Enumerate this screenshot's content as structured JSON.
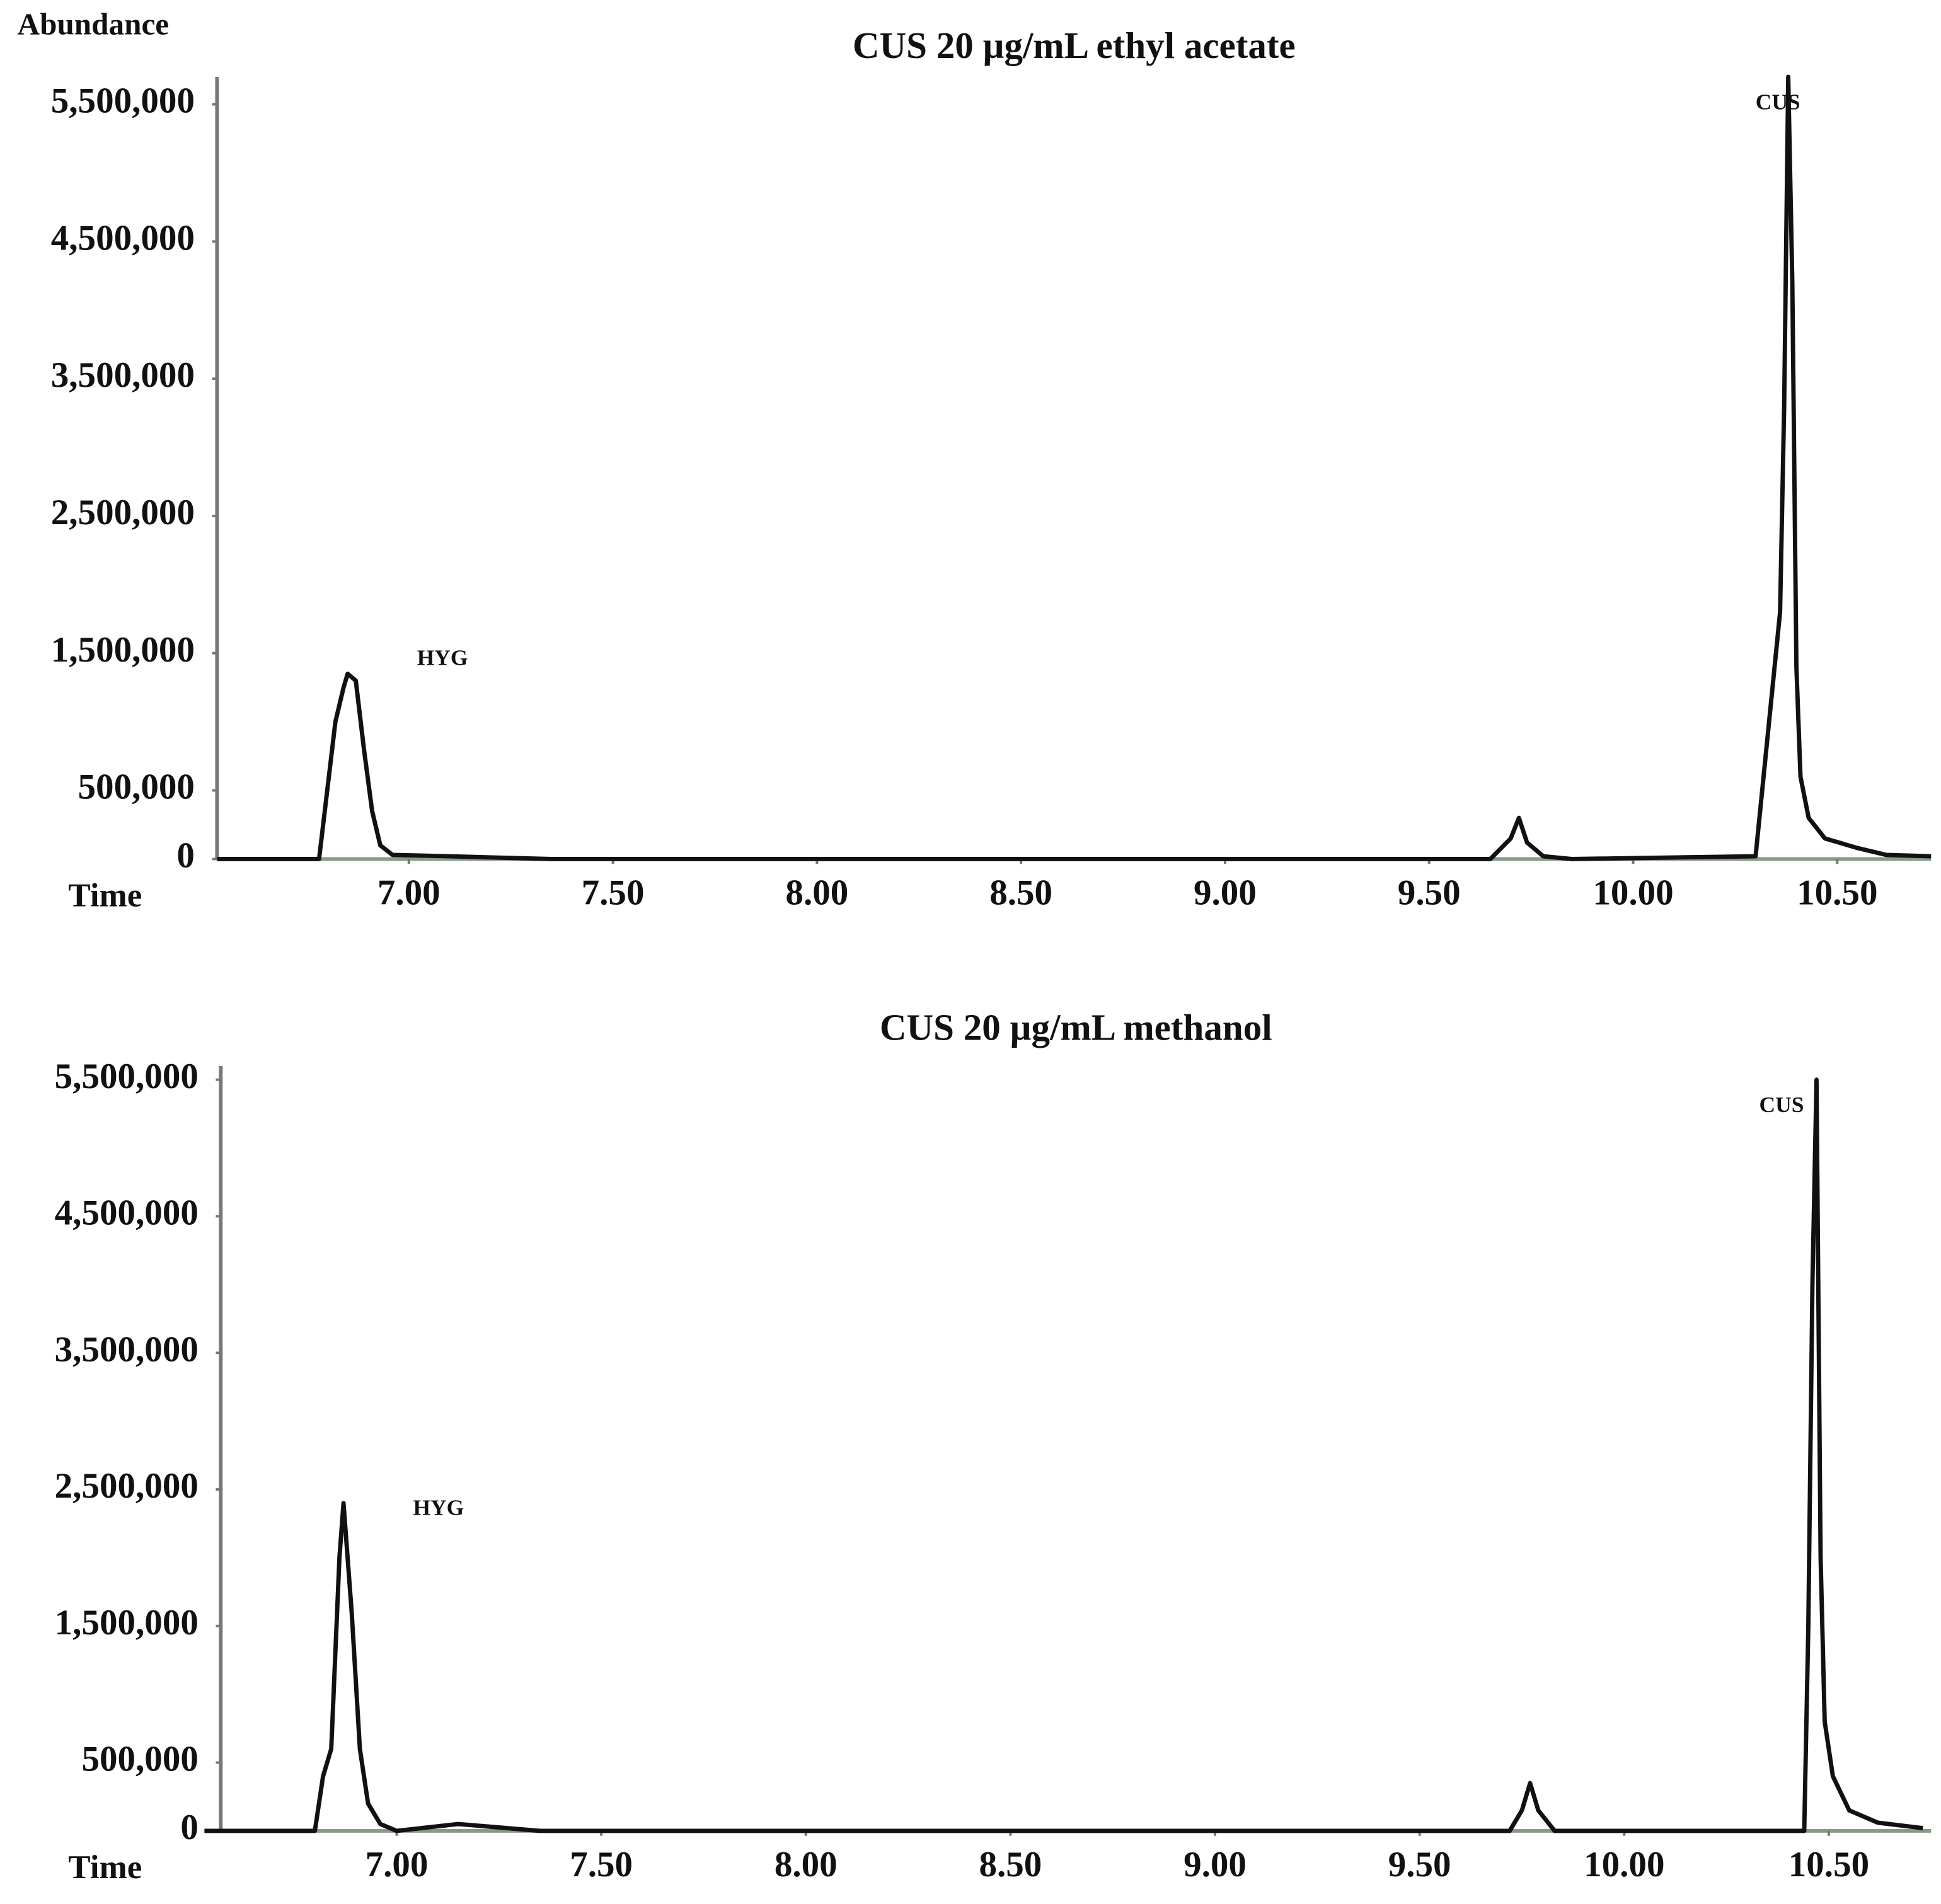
{
  "chart_data": [
    {
      "type": "line",
      "title": "CUS 20 µg/mL ethyl acetate",
      "y_label": "Abundance",
      "x_label": "Time",
      "xlim": [
        6.53,
        10.73
      ],
      "ylim": [
        0,
        5700000
      ],
      "xticks": [
        {
          "value": 7,
          "label": "7.00"
        },
        {
          "value": 7.5,
          "label": "7.50"
        },
        {
          "value": 8,
          "label": "8.00"
        },
        {
          "value": 8.5,
          "label": "8.50"
        },
        {
          "value": 9,
          "label": "9.00"
        },
        {
          "value": 9.5,
          "label": "9.50"
        },
        {
          "value": 10,
          "label": "10.00"
        },
        {
          "value": 10.5,
          "label": "10.50"
        }
      ],
      "yticks": [
        0,
        {
          "value": 500000,
          "label": "500,000"
        },
        {
          "value": 1500000,
          "label": "1,500,000"
        },
        {
          "value": 2500000,
          "label": "2,500,000"
        },
        {
          "value": 3500000,
          "label": "3,500,000"
        },
        {
          "value": 4500000,
          "label": "4,500,000"
        },
        {
          "value": 5500000,
          "label": "5,500,000"
        }
      ],
      "color": "#111111",
      "x": [
        6.53,
        6.78,
        6.8,
        6.82,
        6.84,
        6.85,
        6.87,
        6.89,
        6.91,
        6.93,
        6.96,
        7.1,
        7.35,
        9.65,
        9.7,
        9.72,
        9.74,
        9.78,
        9.85,
        10.3,
        10.36,
        10.37,
        10.38,
        10.39,
        10.4,
        10.41,
        10.43,
        10.47,
        10.55,
        10.62,
        10.73
      ],
      "values": [
        0,
        0,
        500000,
        1000000,
        1250000,
        1350000,
        1300000,
        800000,
        350000,
        100000,
        30000,
        20000,
        0,
        0,
        150000,
        300000,
        120000,
        20000,
        0,
        20000,
        1800000,
        3300000,
        5700000,
        4200000,
        1400000,
        600000,
        300000,
        150000,
        80000,
        30000,
        20000
      ],
      "annotations": [
        {
          "text": "HYG",
          "x": 7.02,
          "y": 1450000
        },
        {
          "text": "CUS",
          "x": 10.3,
          "y": 5500000
        }
      ]
    },
    {
      "type": "line",
      "title": "CUS 20 µg/mL methanol",
      "x_label": "Time",
      "xlim": [
        6.57,
        10.75
      ],
      "ylim": [
        0,
        5600000
      ],
      "xticks": [
        {
          "value": 7,
          "label": "7.00"
        },
        {
          "value": 7.5,
          "label": "7.50"
        },
        {
          "value": 8,
          "label": "8.00"
        },
        {
          "value": 8.5,
          "label": "8.50"
        },
        {
          "value": 9,
          "label": "9.00"
        },
        {
          "value": 9.5,
          "label": "9.50"
        },
        {
          "value": 10,
          "label": "10.00"
        },
        {
          "value": 10.5,
          "label": "10.50"
        }
      ],
      "yticks": [
        0,
        {
          "value": 500000,
          "label": "500,000"
        },
        {
          "value": 1500000,
          "label": "1,500,000"
        },
        {
          "value": 2500000,
          "label": "2,500,000"
        },
        {
          "value": 3500000,
          "label": "3,500,000"
        },
        {
          "value": 4500000,
          "label": "4,500,000"
        },
        {
          "value": 5500000,
          "label": "5,500,000"
        }
      ],
      "color": "#111111",
      "x": [
        6.53,
        6.8,
        6.82,
        6.84,
        6.86,
        6.87,
        6.89,
        6.91,
        6.93,
        6.96,
        7.0,
        7.15,
        7.35,
        9.72,
        9.75,
        9.77,
        9.79,
        9.83,
        10.4,
        10.44,
        10.45,
        10.46,
        10.47,
        10.48,
        10.49,
        10.51,
        10.55,
        10.62,
        10.73
      ],
      "values": [
        0,
        0,
        400000,
        600000,
        2000000,
        2400000,
        1600000,
        600000,
        200000,
        50000,
        0,
        50000,
        0,
        0,
        150000,
        350000,
        150000,
        0,
        0,
        0,
        1500000,
        4000000,
        5500000,
        2000000,
        800000,
        400000,
        150000,
        60000,
        20000
      ],
      "annotations": [
        {
          "text": "HYG",
          "x": 7.04,
          "y": 2350000
        },
        {
          "text": "CUS",
          "x": 10.33,
          "y": 5300000
        }
      ]
    }
  ]
}
